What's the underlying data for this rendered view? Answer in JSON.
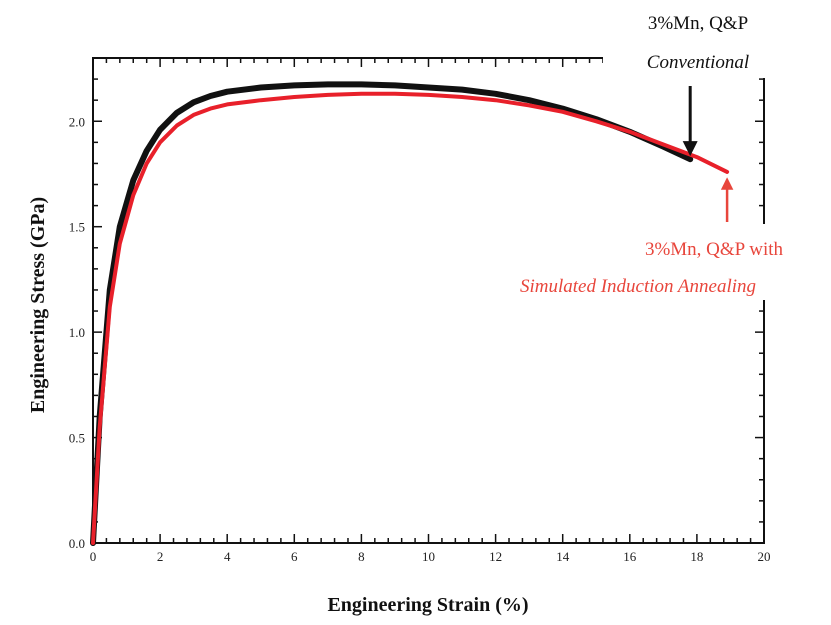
{
  "chart_data": {
    "type": "line",
    "xlabel": "Engineering Strain (%)",
    "ylabel": "Engineering Stress (GPa)",
    "xlim": [
      0,
      20
    ],
    "ylim": [
      0,
      2.3
    ],
    "x_ticks": [
      0,
      2,
      4,
      6,
      8,
      10,
      12,
      14,
      16,
      18,
      20
    ],
    "x_tick_labels": [
      "0",
      "2",
      "4",
      "6",
      "8",
      "10",
      "12",
      "14",
      "16",
      "18",
      "20"
    ],
    "y_ticks": [
      0.0,
      0.5,
      1.0,
      1.5,
      2.0
    ],
    "y_tick_labels": [
      "0.0",
      "0.5",
      "1.0",
      "1.5",
      "2.0"
    ],
    "grid": false,
    "series": [
      {
        "name": "3%Mn, Q&P Conventional",
        "color": "#111111",
        "x": [
          0,
          0.2,
          0.5,
          0.8,
          1.2,
          1.6,
          2.0,
          2.5,
          3.0,
          3.5,
          4.0,
          5.0,
          6.0,
          7.0,
          8.0,
          9.0,
          10.0,
          11.0,
          12.0,
          13.0,
          14.0,
          15.0,
          16.0,
          17.0,
          17.8
        ],
        "y": [
          0.0,
          0.6,
          1.2,
          1.5,
          1.72,
          1.86,
          1.96,
          2.04,
          2.09,
          2.12,
          2.14,
          2.16,
          2.17,
          2.175,
          2.175,
          2.17,
          2.16,
          2.15,
          2.13,
          2.1,
          2.06,
          2.01,
          1.95,
          1.88,
          1.82
        ]
      },
      {
        "name": "3%Mn, Q&P with Simulated Induction Annealing",
        "color": "#e8202a",
        "x": [
          0,
          0.2,
          0.5,
          0.8,
          1.2,
          1.6,
          2.0,
          2.5,
          3.0,
          3.5,
          4.0,
          5.0,
          6.0,
          7.0,
          8.0,
          9.0,
          10.0,
          11.0,
          12.0,
          13.0,
          14.0,
          15.0,
          16.0,
          17.0,
          18.0,
          18.9
        ],
        "y": [
          0.0,
          0.55,
          1.12,
          1.42,
          1.65,
          1.8,
          1.9,
          1.98,
          2.03,
          2.06,
          2.08,
          2.1,
          2.115,
          2.125,
          2.13,
          2.13,
          2.125,
          2.115,
          2.1,
          2.075,
          2.045,
          2.0,
          1.95,
          1.89,
          1.83,
          1.76
        ]
      }
    ],
    "annotations": [
      {
        "series": 0,
        "line1": "3%Mn, Q&P",
        "line2": "Conventional",
        "arrow_to": [
          17.8,
          1.83
        ]
      },
      {
        "series": 1,
        "line1": "3%Mn, Q&P with",
        "line2": "Simulated Induction Annealing",
        "arrow_to": [
          18.9,
          1.77
        ]
      }
    ]
  }
}
